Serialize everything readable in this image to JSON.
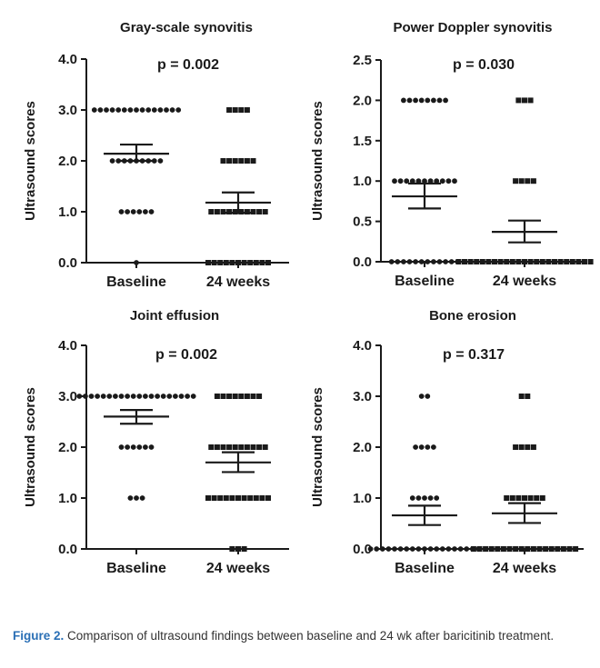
{
  "figure": {
    "caption_label": "Figure 2.",
    "caption_text": " Comparison of ultrasound findings between baseline and 24 wk after baricitinib treatment."
  },
  "chart_data": [
    {
      "type": "scatter",
      "title": "Gray-scale synovitis",
      "annotation": "p = 0.002",
      "ylabel": "Ultrasound scores",
      "ylim": [
        0,
        4
      ],
      "yticks": [
        "0.0",
        "1.0",
        "2.0",
        "3.0",
        "4.0"
      ],
      "categories": [
        "Baseline",
        "24 weeks"
      ],
      "groups": [
        {
          "name": "Baseline",
          "marker": "circle",
          "counts": {
            "0": 1,
            "1": 6,
            "2": 9,
            "3": 15
          },
          "mean": 2.14,
          "sem_low": 2.0,
          "sem_high": 2.32
        },
        {
          "name": "24 weeks",
          "marker": "square",
          "counts": {
            "0": 11,
            "1": 10,
            "2": 6,
            "3": 4
          },
          "mean": 1.18,
          "sem_low": 0.98,
          "sem_high": 1.38
        }
      ]
    },
    {
      "type": "scatter",
      "title": "Power Doppler synovitis",
      "annotation": "p = 0.030",
      "ylabel": "Ultrasound scores",
      "ylim": [
        0,
        2.5
      ],
      "yticks": [
        "0.0",
        "0.5",
        "1.0",
        "1.5",
        "2.0",
        "2.5"
      ],
      "categories": [
        "Baseline",
        "24 weeks"
      ],
      "groups": [
        {
          "name": "Baseline",
          "marker": "circle",
          "counts": {
            "0": 12,
            "1": 11,
            "2": 8
          },
          "mean": 0.81,
          "sem_low": 0.66,
          "sem_high": 0.97
        },
        {
          "name": "24 weeks",
          "marker": "square",
          "counts": {
            "0": 23,
            "1": 4,
            "2": 3
          },
          "mean": 0.37,
          "sem_low": 0.24,
          "sem_high": 0.51
        }
      ]
    },
    {
      "type": "scatter",
      "title": "Joint effusion",
      "annotation": "p = 0.002",
      "ylabel": "Ultrasound scores",
      "ylim": [
        0,
        4
      ],
      "yticks": [
        "0.0",
        "1.0",
        "2.0",
        "3.0",
        "4.0"
      ],
      "categories": [
        "Baseline",
        "24 weeks"
      ],
      "groups": [
        {
          "name": "Baseline",
          "marker": "circle",
          "counts": {
            "1": 3,
            "2": 6,
            "3": 20
          },
          "mean": 2.6,
          "sem_low": 2.46,
          "sem_high": 2.73
        },
        {
          "name": "24 weeks",
          "marker": "square",
          "counts": {
            "0": 3,
            "1": 11,
            "2": 10,
            "3": 8
          },
          "mean": 1.7,
          "sem_low": 1.51,
          "sem_high": 1.9
        }
      ]
    },
    {
      "type": "scatter",
      "title": "Bone erosion",
      "annotation": "p = 0.317",
      "ylabel": "Ultrasound scores",
      "ylim": [
        0,
        4
      ],
      "yticks": [
        "0.0",
        "1.0",
        "2.0",
        "3.0",
        "4.0"
      ],
      "categories": [
        "Baseline",
        "24 weeks"
      ],
      "groups": [
        {
          "name": "Baseline",
          "marker": "circle",
          "counts": {
            "0": 19,
            "1": 5,
            "2": 4,
            "3": 2
          },
          "mean": 0.66,
          "sem_low": 0.47,
          "sem_high": 0.85
        },
        {
          "name": "24 weeks",
          "marker": "square",
          "counts": {
            "0": 18,
            "1": 7,
            "2": 4,
            "3": 2
          },
          "mean": 0.7,
          "sem_low": 0.51,
          "sem_high": 0.9
        }
      ]
    }
  ]
}
